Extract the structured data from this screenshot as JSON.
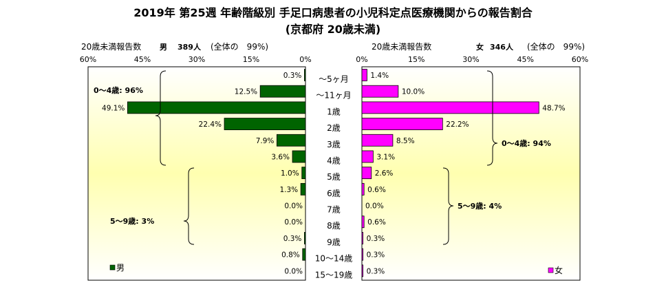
{
  "title": "2019年 第25週 年齢階級別 手足口病患者の小児科定点医療機関からの報告割合",
  "subtitle": "(京都府 20歳未満)",
  "left_header": {
    "label": "20歳未満報告数",
    "sex": "男",
    "count": "389人",
    "share": "(全体の　99%)"
  },
  "right_header": {
    "label": "20歳未満報告数",
    "sex": "女",
    "count": "346人",
    "share": "(全体の　99%)"
  },
  "chart_data": {
    "type": "bar",
    "orientation": "horizontal-mirrored",
    "categories": [
      "〜5ヶ月",
      "〜11ヶ月",
      "1歳",
      "2歳",
      "3歳",
      "4歳",
      "5歳",
      "6歳",
      "7歳",
      "8歳",
      "9歳",
      "10〜14歳",
      "15〜19歳"
    ],
    "series": [
      {
        "name": "男",
        "color": "#006400",
        "values": [
          0.3,
          12.5,
          49.1,
          22.4,
          7.9,
          3.6,
          1.0,
          1.3,
          0.0,
          0.0,
          0.3,
          0.8,
          0.0
        ],
        "labels": [
          "0.3%",
          "12.5%",
          "49.1%",
          "22.4%",
          "7.9%",
          "3.6%",
          "1.0%",
          "1.3%",
          "0.0%",
          "0.0%",
          "0.3%",
          "0.8%",
          "0.0%"
        ]
      },
      {
        "name": "女",
        "color": "#ff00ff",
        "values": [
          1.4,
          10.0,
          48.7,
          22.2,
          8.5,
          3.1,
          2.6,
          0.6,
          0.0,
          0.6,
          0.3,
          0.3,
          0.3
        ],
        "labels": [
          "1.4%",
          "10.0%",
          "48.7%",
          "22.2%",
          "8.5%",
          "3.1%",
          "2.6%",
          "0.6%",
          "0.0%",
          "0.6%",
          "0.3%",
          "0.3%",
          "0.3%"
        ]
      }
    ],
    "xlim": [
      0,
      60
    ],
    "ticks": [
      "0%",
      "15%",
      "30%",
      "45%",
      "60%"
    ],
    "left_ticks": [
      "60%",
      "45%",
      "30%",
      "15%",
      "0%"
    ],
    "annotations": {
      "left_group_1": "0〜4歳: 96%",
      "left_group_2": "5〜9歳: 3%",
      "right_group_1": "0〜4歳: 94%",
      "right_group_2": "5〜9歳: 4%"
    },
    "legend": {
      "left": "男",
      "right": "女",
      "placement": "bottom-left / bottom-right"
    },
    "plot_background": "yellow-to-white gradient"
  }
}
